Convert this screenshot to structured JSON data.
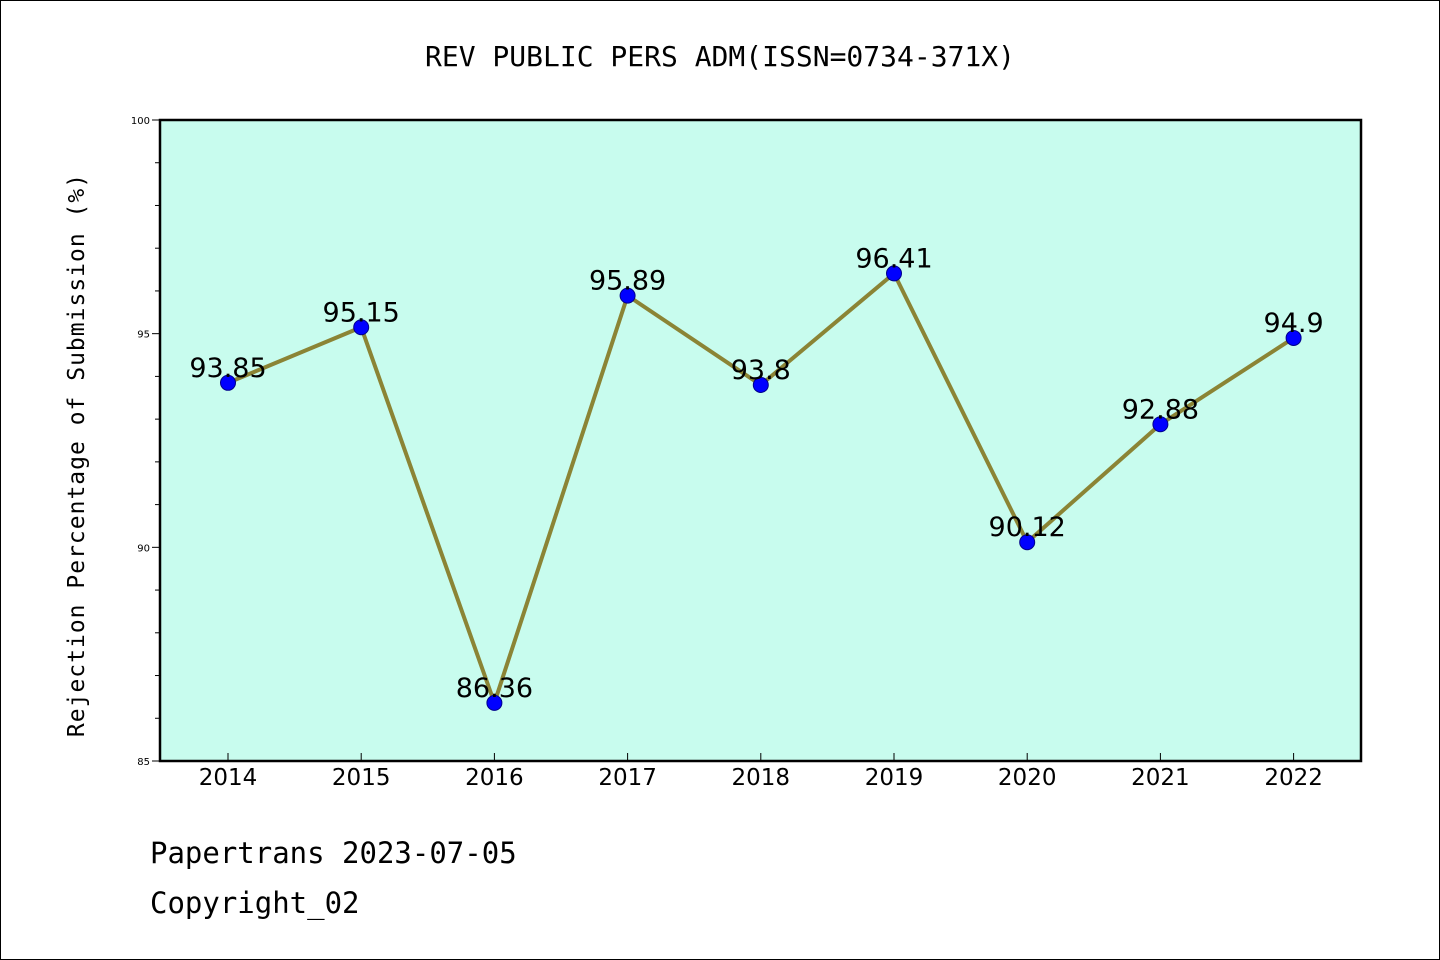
{
  "chart_data": {
    "type": "line",
    "title": "REV PUBLIC PERS ADM(ISSN=0734-371X)",
    "xlabel": "",
    "ylabel": "Rejection Percentage of Submission (%)",
    "categories": [
      "2014",
      "2015",
      "2016",
      "2017",
      "2018",
      "2019",
      "2020",
      "2021",
      "2022"
    ],
    "series": [
      {
        "values": [
          93.85,
          95.15,
          86.36,
          95.89,
          93.8,
          96.41,
          90.12,
          92.88,
          94.9
        ],
        "labels": [
          "93.85",
          "95.15",
          "86.36",
          "95.89",
          "93.8",
          "96.41",
          "90.12",
          "92.88",
          "94.9"
        ]
      }
    ],
    "ylim": [
      85,
      100
    ],
    "yticks": [
      "85",
      "90",
      "95",
      "100"
    ],
    "grid": false,
    "legend": "none",
    "colors": {
      "background": "#c8fcee",
      "line": "#8b8435",
      "marker": "#0000ff",
      "axes": "#000000"
    }
  },
  "footer": {
    "line1": "Papertrans 2023-07-05",
    "line2": "Copyright_02"
  }
}
